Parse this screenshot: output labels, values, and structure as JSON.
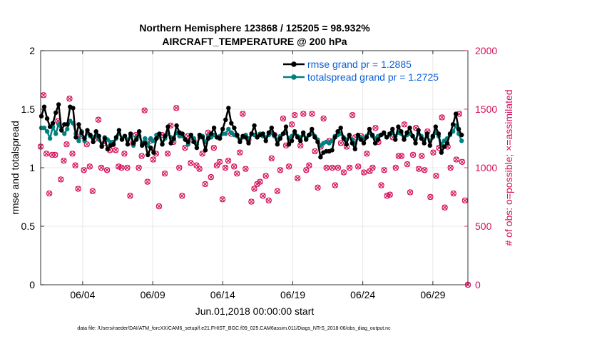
{
  "chart_data": {
    "type": "line",
    "title_line1": "Northern Hemisphere 123868 / 125205 = 98.932%",
    "title_line2": "AIRCRAFT_TEMPERATURE @ 200 hPa",
    "xlabel": "Jun.01,2018 00:00:00 start",
    "ylabel_left": "rmse and totalspread",
    "ylabel_right": "# of obs: o=possible; ×=assimilated",
    "footer": "data file: /Users/raeder/DAI/ATM_forcXX/CAM6_setup/f.e21.FHIST_BGC.f09_025.CAM6assim.011/Diags_NTrS_2018-06/obs_diag_output.nc",
    "x_range": [
      1,
      31.5
    ],
    "ylim_left": [
      0,
      2
    ],
    "ylim_right": [
      0,
      2000
    ],
    "x_ticks": [
      {
        "label": "06/04",
        "x": 4
      },
      {
        "label": "06/09",
        "x": 9
      },
      {
        "label": "06/14",
        "x": 14
      },
      {
        "label": "06/19",
        "x": 19
      },
      {
        "label": "06/24",
        "x": 24
      },
      {
        "label": "06/29",
        "x": 29
      }
    ],
    "y_ticks_left": [
      "0",
      "0.5",
      "1",
      "1.5",
      "2"
    ],
    "y_ticks_right": [
      "0",
      "500",
      "1000",
      "1500",
      "2000"
    ],
    "colors": {
      "rmse": "#000000",
      "spread": "#00807f",
      "obs": "#d6105a",
      "legend_text": "#0a5fd6",
      "grid": "#e2e2e2"
    },
    "series": [
      {
        "name": "rmse",
        "legend": "rmse grand pr = 1.2885",
        "values": [
          1.44,
          1.52,
          1.42,
          1.35,
          1.38,
          1.47,
          1.54,
          1.32,
          1.37,
          1.37,
          1.52,
          1.51,
          1.26,
          1.37,
          1.3,
          1.25,
          1.32,
          1.28,
          1.22,
          1.31,
          1.27,
          1.18,
          1.25,
          1.16,
          1.19,
          1.2,
          1.26,
          1.32,
          1.24,
          1.27,
          1.2,
          1.29,
          1.21,
          1.24,
          1.31,
          1.19,
          1.21,
          1.11,
          1.17,
          1.13,
          1.25,
          1.29,
          1.2,
          1.27,
          1.35,
          1.21,
          1.25,
          1.36,
          1.3,
          1.29,
          1.24,
          1.22,
          1.28,
          1.22,
          1.17,
          1.28,
          1.26,
          1.15,
          1.25,
          1.29,
          1.34,
          1.26,
          1.25,
          1.33,
          1.41,
          1.51,
          1.38,
          1.34,
          1.28,
          1.22,
          1.27,
          1.26,
          1.21,
          1.29,
          1.36,
          1.26,
          1.28,
          1.29,
          1.23,
          1.3,
          1.34,
          1.28,
          1.2,
          1.25,
          1.29,
          1.35,
          1.2,
          1.23,
          1.31,
          1.26,
          1.23,
          1.3,
          1.24,
          1.28,
          1.33,
          1.26,
          1.22,
          1.09,
          1.13,
          1.14,
          1.14,
          1.15,
          1.26,
          1.31,
          1.34,
          1.25,
          1.2,
          1.28,
          1.21,
          1.16,
          1.28,
          1.24,
          1.21,
          1.26,
          1.33,
          1.28,
          1.21,
          1.24,
          1.28,
          1.3,
          1.26,
          1.29,
          1.33,
          1.24,
          1.35,
          1.31,
          1.24,
          1.3,
          1.34,
          1.27,
          1.21,
          1.32,
          1.25,
          1.21,
          1.29,
          1.19,
          1.27,
          1.35,
          1.29,
          1.13,
          1.18,
          1.21,
          1.29,
          1.37,
          1.46,
          1.33,
          1.28
        ]
      },
      {
        "name": "spread",
        "legend": "totalspread grand pr = 1.2725",
        "values": [
          1.34,
          1.34,
          1.31,
          1.25,
          1.35,
          1.29,
          1.37,
          1.32,
          1.29,
          1.33,
          1.4,
          1.38,
          1.29,
          1.23,
          1.31,
          1.23,
          1.3,
          1.27,
          1.26,
          1.27,
          1.24,
          1.19,
          1.26,
          1.24,
          1.22,
          1.22,
          1.25,
          1.29,
          1.25,
          1.27,
          1.24,
          1.27,
          1.19,
          1.26,
          1.27,
          1.21,
          1.25,
          1.19,
          1.25,
          1.23,
          1.28,
          1.27,
          1.2,
          1.25,
          1.29,
          1.26,
          1.24,
          1.3,
          1.27,
          1.27,
          1.24,
          1.2,
          1.28,
          1.25,
          1.2,
          1.26,
          1.27,
          1.22,
          1.27,
          1.26,
          1.28,
          1.26,
          1.27,
          1.29,
          1.29,
          1.33,
          1.3,
          1.28,
          1.27,
          1.24,
          1.26,
          1.28,
          1.25,
          1.29,
          1.28,
          1.26,
          1.29,
          1.27,
          1.26,
          1.28,
          1.3,
          1.27,
          1.24,
          1.27,
          1.29,
          1.3,
          1.25,
          1.27,
          1.29,
          1.27,
          1.26,
          1.28,
          1.25,
          1.28,
          1.29,
          1.27,
          1.24,
          1.19,
          1.21,
          1.22,
          1.21,
          1.23,
          1.27,
          1.28,
          1.29,
          1.26,
          1.24,
          1.27,
          1.24,
          1.21,
          1.26,
          1.26,
          1.24,
          1.27,
          1.3,
          1.27,
          1.25,
          1.27,
          1.28,
          1.29,
          1.26,
          1.28,
          1.3,
          1.27,
          1.3,
          1.29,
          1.26,
          1.28,
          1.29,
          1.27,
          1.24,
          1.29,
          1.27,
          1.24,
          1.27,
          1.23,
          1.26,
          1.3,
          1.27,
          1.2,
          1.23,
          1.25,
          1.28,
          1.31,
          1.36,
          1.29,
          1.23
        ]
      },
      {
        "name": "obs",
        "legend": "",
        "values": [
          1180,
          1620,
          1120,
          780,
          1110,
          1110,
          1400,
          900,
          1060,
          1200,
          1590,
          1120,
          1020,
          820,
          1270,
          980,
          1200,
          1010,
          800,
          1250,
          1410,
          1000,
          1210,
          980,
          1150,
          1200,
          1150,
          1010,
          1000,
          1120,
          1000,
          760,
          1210,
          1280,
          1000,
          1100,
          1490,
          880,
          1230,
          1070,
          1120,
          670,
          1280,
          950,
          1120,
          1360,
          1220,
          1510,
          1000,
          760,
          1170,
          1270,
          1040,
          1230,
          1020,
          990,
          1120,
          860,
          1300,
          920,
          1170,
          1020,
          1050,
          730,
          1000,
          1060,
          1290,
          1010,
          950,
          1130,
          1460,
          990,
          1240,
          710,
          820,
          860,
          880,
          760,
          930,
          720,
          1080,
          1280,
          800,
          980,
          1420,
          1190,
          1010,
          1370,
          1450,
          910,
          1190,
          1460,
          980,
          1020,
          1460,
          1140,
          830,
          1180,
          1420,
          1000,
          1230,
          1000,
          850,
          1000,
          1210,
          960,
          1180,
          1000,
          1450,
          1260,
          1010,
          1270,
          960,
          1120,
          970,
          1000,
          1340,
          1220,
          850,
          980,
          760,
          770,
          1260,
          1000,
          1100,
          1100,
          1370,
          1030,
          790,
          1110,
          1340,
          990,
          1100,
          980,
          1310,
          750,
          1130,
          930,
          1170,
          1430,
          660,
          1180,
          1000,
          780,
          1070,
          1460,
          1050,
          720,
          0
        ]
      }
    ]
  }
}
